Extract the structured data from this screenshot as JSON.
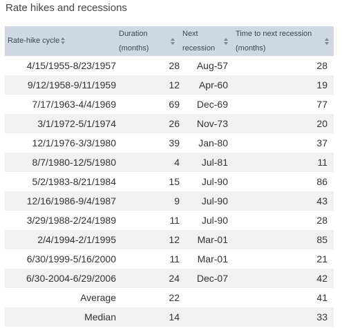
{
  "title": "Rate hikes and recessions",
  "headers": {
    "cycle": "Rate-hike cycle",
    "duration_line1": "Duration",
    "duration_line2": "(months)",
    "next_line1": "Next",
    "next_line2": "recession",
    "time_line1": "Time to next recession",
    "time_line2": "(months)"
  },
  "rows": [
    {
      "cycle": "4/15/1955-8/23/1957",
      "duration": "28",
      "next": "Aug-57",
      "time": "28"
    },
    {
      "cycle": "9/12/1958-9/11/1959",
      "duration": "12",
      "next": "Apr-60",
      "time": "19"
    },
    {
      "cycle": "7/17/1963-4/4/1969",
      "duration": "69",
      "next": "Dec-69",
      "time": "77"
    },
    {
      "cycle": "3/1/1972-5/1/1974",
      "duration": "26",
      "next": "Nov-73",
      "time": "20"
    },
    {
      "cycle": "12/1/1976-3/3/1980",
      "duration": "39",
      "next": "Jan-80",
      "time": "37"
    },
    {
      "cycle": "8/7/1980-12/5/1980",
      "duration": "4",
      "next": "Jul-81",
      "time": "11"
    },
    {
      "cycle": "5/2/1983-8/21/1984",
      "duration": "15",
      "next": "Jul-90",
      "time": "86"
    },
    {
      "cycle": "12/16/1986-9/4/1987",
      "duration": "9",
      "next": "Jul-90",
      "time": "43"
    },
    {
      "cycle": "3/29/1988-2/24/1989",
      "duration": "11",
      "next": "Jul-90",
      "time": "28"
    },
    {
      "cycle": "2/4/1994-2/1/1995",
      "duration": "12",
      "next": "Mar-01",
      "time": "85"
    },
    {
      "cycle": "6/30/1999-5/16/2000",
      "duration": "11",
      "next": "Mar-01",
      "time": "21"
    },
    {
      "cycle": "6/30-2004-6/29/2006",
      "duration": "24",
      "next": "Dec-07",
      "time": "42"
    },
    {
      "cycle": "Average",
      "duration": "22",
      "next": "",
      "time": "41"
    },
    {
      "cycle": "Median",
      "duration": "14",
      "next": "",
      "time": "33"
    }
  ]
}
